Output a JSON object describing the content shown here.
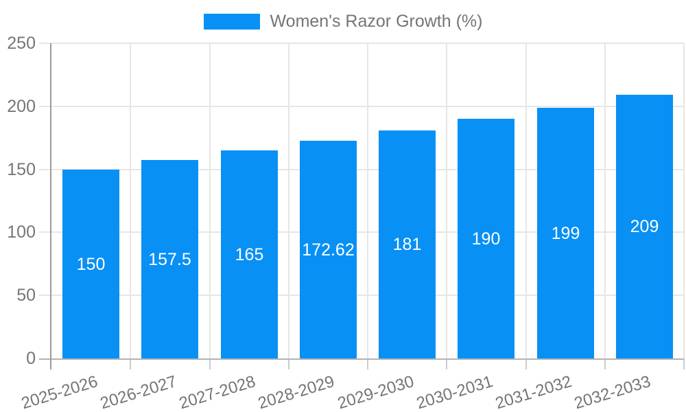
{
  "chart_data": {
    "type": "bar",
    "title": "",
    "legend": {
      "label": "Women's Razor Growth (%)",
      "position": "top-center",
      "marker": "rectangle"
    },
    "categories": [
      "2025-2026",
      "2026-2027",
      "2027-2028",
      "2028-2029",
      "2029-2030",
      "2030-2031",
      "2031-2032",
      "2032-2033"
    ],
    "series": [
      {
        "name": "Women's Razor Growth (%)",
        "values": [
          150,
          157.5,
          165,
          172.62,
          181,
          190,
          199,
          209
        ],
        "value_labels": [
          "150",
          "157.5",
          "165",
          "172.62",
          "181",
          "190",
          "199",
          "209"
        ]
      }
    ],
    "xlabel": "",
    "ylabel": "",
    "ylim": [
      0,
      250
    ],
    "yticks": [
      0,
      50,
      100,
      150,
      200,
      250
    ],
    "ytick_labels": [
      "0",
      "50",
      "100",
      "150",
      "200",
      "250"
    ],
    "grid": true,
    "x_labels_rotated": true,
    "colors": {
      "bar": "#0890f5",
      "bar_value_text": "#ffffff",
      "axis_text": "#757575",
      "gridline": "#e6e6e6",
      "tick": "#cccccc",
      "y_axis_line": "#999999",
      "x_axis_line": "#b3b3b3",
      "background": "#ffffff"
    }
  }
}
